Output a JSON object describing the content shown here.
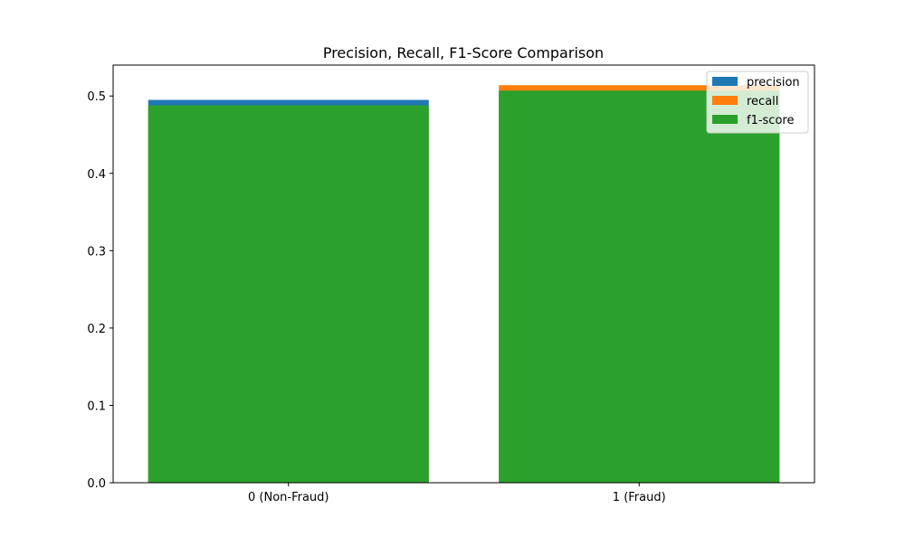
{
  "chart_data": {
    "type": "bar",
    "title": "Precision, Recall, F1-Score Comparison",
    "xlabel": "",
    "ylabel": "",
    "categories": [
      "0 (Non-Fraud)",
      "1 (Fraud)"
    ],
    "series": [
      {
        "name": "precision",
        "values": [
          0.495,
          0.507
        ],
        "color": "#1f77b4"
      },
      {
        "name": "recall",
        "values": [
          0.482,
          0.514
        ],
        "color": "#ff7f0e"
      },
      {
        "name": "f1-score",
        "values": [
          0.488,
          0.507
        ],
        "color": "#2ca02c"
      }
    ],
    "ylim": [
      0,
      0.54
    ],
    "yticks": [
      "0.0",
      "0.1",
      "0.2",
      "0.3",
      "0.4",
      "0.5"
    ],
    "grid": false,
    "legend_position": "top-right",
    "overlay": true
  }
}
